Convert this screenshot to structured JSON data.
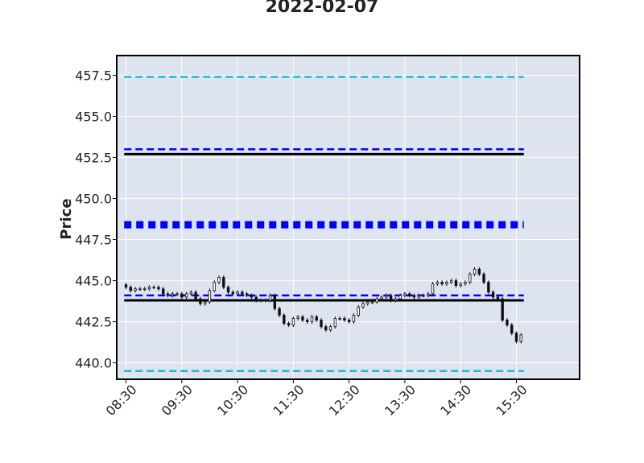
{
  "chart_data": {
    "type": "candlestick",
    "title": "2022-02-07",
    "xlabel": "",
    "ylabel": "Price",
    "ylim": [
      439.0,
      458.7
    ],
    "yticks": [
      440.0,
      442.5,
      445.0,
      447.5,
      450.0,
      452.5,
      455.0,
      457.5
    ],
    "ytick_labels": [
      "440.0",
      "442.5",
      "445.0",
      "447.5",
      "450.0",
      "452.5",
      "455.0",
      "457.5"
    ],
    "xticks": [
      "08:30",
      "09:30",
      "10:30",
      "11:30",
      "12:30",
      "13:30",
      "14:30",
      "15:30"
    ],
    "xlim_minutes": [
      500,
      998
    ],
    "x_start_minutes": 510,
    "interval_minutes": 5,
    "grid": true,
    "legend": "none",
    "colors": {
      "plot_background": "#dde3ef",
      "grid": "#ffffff",
      "frame": "#000000",
      "candle": "#111111",
      "cyan_line": "#17becf",
      "blue_line": "#0000ff",
      "black_line": "#000000"
    },
    "close": [
      444.6,
      444.4,
      444.5,
      444.5,
      444.5,
      444.6,
      444.6,
      444.5,
      444.2,
      444.1,
      444.2,
      444.2,
      444.0,
      444.2,
      444.3,
      443.9,
      443.6,
      443.7,
      444.4,
      444.9,
      445.2,
      444.6,
      444.3,
      444.2,
      444.3,
      444.2,
      444.1,
      444.0,
      443.8,
      443.8,
      443.8,
      444.1,
      443.3,
      442.9,
      442.4,
      442.3,
      442.7,
      442.8,
      442.6,
      442.5,
      442.8,
      442.6,
      442.2,
      442.0,
      442.2,
      442.7,
      442.7,
      442.6,
      442.5,
      442.9,
      443.4,
      443.6,
      443.7,
      443.7,
      443.9,
      444.0,
      444.1,
      443.8,
      443.9,
      444.1,
      444.2,
      444.1,
      444.0,
      444.1,
      444.1,
      444.2,
      444.8,
      444.9,
      444.8,
      444.9,
      445.0,
      444.7,
      444.8,
      444.9,
      445.4,
      445.7,
      445.4,
      444.9,
      444.3,
      444.0,
      443.9,
      442.6,
      442.3,
      441.8,
      441.3,
      441.7
    ],
    "hlines": [
      {
        "value": 457.4,
        "style": "dashed",
        "color": "#17becf",
        "width": 2.5
      },
      {
        "value": 453.0,
        "style": "dashed",
        "color": "#0000ff",
        "width": 2.5
      },
      {
        "value": 452.7,
        "style": "solid",
        "color": "#000000",
        "width": 3
      },
      {
        "value": 448.4,
        "style": "dashed",
        "color": "#0000ff",
        "width": 9
      },
      {
        "value": 444.1,
        "style": "dashed",
        "color": "#0000ff",
        "width": 2.5
      },
      {
        "value": 443.8,
        "style": "solid",
        "color": "#000000",
        "width": 3
      },
      {
        "value": 439.5,
        "style": "dashed",
        "color": "#17becf",
        "width": 2.5
      }
    ]
  }
}
